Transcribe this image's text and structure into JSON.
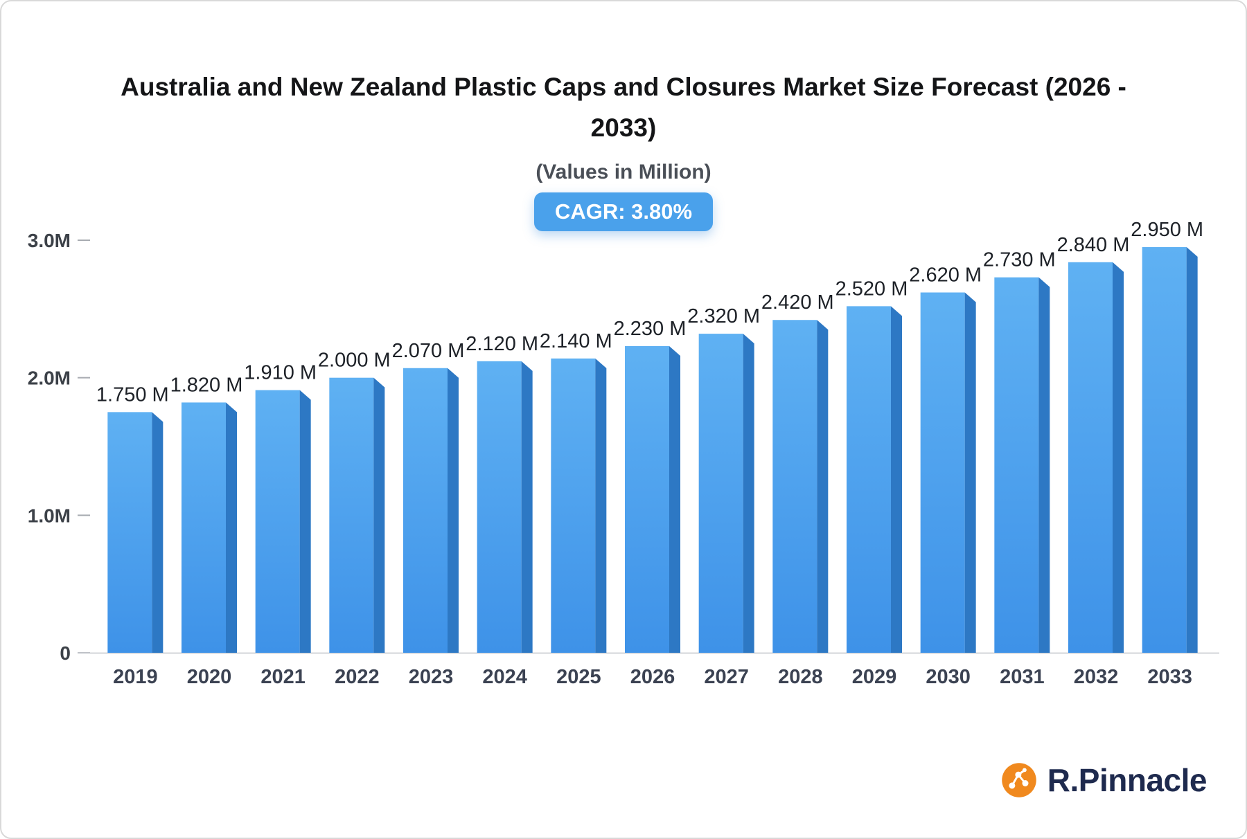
{
  "header": {
    "title_line1": "Australia and New Zealand Plastic Caps and Closures Market Size Forecast (2026 -",
    "title_line2": "2033)",
    "subtitle": "(Values in Million)",
    "cagr_badge": "CAGR: 3.80%"
  },
  "chart_data": {
    "type": "bar",
    "title": "Australia and New Zealand Plastic Caps and Closures Market Size Forecast (2026 - 2033)",
    "subtitle": "(Values in Million)",
    "cagr": "3.80%",
    "categories": [
      "2019",
      "2020",
      "2021",
      "2022",
      "2023",
      "2024",
      "2025",
      "2026",
      "2027",
      "2028",
      "2029",
      "2030",
      "2031",
      "2032",
      "2033"
    ],
    "values": [
      1.75,
      1.82,
      1.91,
      2.0,
      2.07,
      2.12,
      2.14,
      2.23,
      2.32,
      2.42,
      2.52,
      2.62,
      2.73,
      2.84,
      2.95
    ],
    "value_labels": [
      "1.750 M",
      "1.820 M",
      "1.910 M",
      "2.000 M",
      "2.070 M",
      "2.120 M",
      "2.140 M",
      "2.230 M",
      "2.320 M",
      "2.420 M",
      "2.520 M",
      "2.620 M",
      "2.730 M",
      "2.840 M",
      "2.950 M"
    ],
    "xlabel": "",
    "ylabel": "",
    "ylim": [
      0,
      3.0
    ],
    "yticks": [
      {
        "value": 0,
        "label": "0"
      },
      {
        "value": 1.0,
        "label": "1.0M"
      },
      {
        "value": 2.0,
        "label": "2.0M"
      },
      {
        "value": 3.0,
        "label": "3.0M"
      }
    ],
    "grid": "off",
    "legend": "none",
    "colors": {
      "bar_front_top": "#5fb1f3",
      "bar_front_bottom": "#3e92e8",
      "bar_side": "#2d78c4",
      "axis_line": "#d3d6da",
      "tick": "#a7abb1",
      "value_label": "#1d2127",
      "year_label": "#3b4252",
      "ytick_label": "#3c4148",
      "badge_blue": "#4aa1eb"
    }
  },
  "branding": {
    "logo_text": "R.Pinnacle",
    "logo_text_color": "#1e2a4e",
    "icon_name": "network-molecule-icon",
    "icon_color": "#f0891e"
  }
}
